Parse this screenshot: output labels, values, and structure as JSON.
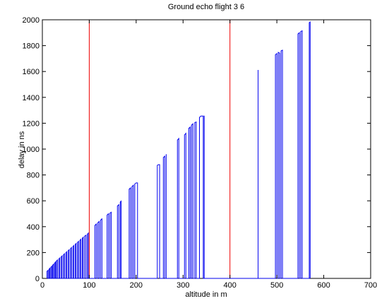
{
  "chart_data": {
    "type": "line",
    "title": "Ground echo flight 3 6",
    "xlabel": "altitude in m",
    "ylabel": "delay in ns",
    "xlim": [
      0,
      700
    ],
    "ylim": [
      0,
      2000
    ],
    "x_ticks": [
      0,
      100,
      200,
      300,
      400,
      500,
      600,
      700
    ],
    "y_ticks": [
      0,
      200,
      400,
      600,
      800,
      1000,
      1200,
      1400,
      1600,
      1800,
      2000
    ],
    "grid": false,
    "legend": "none",
    "colors": {
      "series": "#0000ee",
      "markers": "#ee0000",
      "axes": "#000000"
    },
    "vertical_markers": [
      100,
      400
    ],
    "series": [
      {
        "color": "#0000ee",
        "points": [
          [
            10,
            0
          ],
          [
            10,
            55
          ],
          [
            12,
            62
          ],
          [
            12,
            0
          ],
          [
            14,
            0
          ],
          [
            14,
            70
          ],
          [
            16,
            78
          ],
          [
            16,
            0
          ],
          [
            18,
            0
          ],
          [
            18,
            86
          ],
          [
            20,
            94
          ],
          [
            20,
            0
          ],
          [
            22,
            0
          ],
          [
            22,
            102
          ],
          [
            24,
            110
          ],
          [
            24,
            0
          ],
          [
            26,
            0
          ],
          [
            26,
            118
          ],
          [
            28,
            126
          ],
          [
            28,
            0
          ],
          [
            30,
            0
          ],
          [
            30,
            134
          ],
          [
            32,
            142
          ],
          [
            32,
            0
          ],
          [
            35,
            0
          ],
          [
            35,
            150
          ],
          [
            37,
            158
          ],
          [
            37,
            0
          ],
          [
            40,
            0
          ],
          [
            40,
            166
          ],
          [
            42,
            174
          ],
          [
            42,
            0
          ],
          [
            45,
            0
          ],
          [
            45,
            182
          ],
          [
            47,
            190
          ],
          [
            47,
            0
          ],
          [
            50,
            0
          ],
          [
            50,
            198
          ],
          [
            52,
            206
          ],
          [
            52,
            0
          ],
          [
            55,
            0
          ],
          [
            55,
            214
          ],
          [
            57,
            222
          ],
          [
            57,
            0
          ],
          [
            60,
            0
          ],
          [
            60,
            230
          ],
          [
            62,
            238
          ],
          [
            62,
            0
          ],
          [
            65,
            0
          ],
          [
            65,
            246
          ],
          [
            67,
            254
          ],
          [
            67,
            0
          ],
          [
            70,
            0
          ],
          [
            70,
            262
          ],
          [
            72,
            270
          ],
          [
            72,
            0
          ],
          [
            75,
            0
          ],
          [
            75,
            278
          ],
          [
            77,
            286
          ],
          [
            77,
            0
          ],
          [
            80,
            0
          ],
          [
            80,
            294
          ],
          [
            82,
            302
          ],
          [
            82,
            0
          ],
          [
            85,
            0
          ],
          [
            85,
            310
          ],
          [
            87,
            318
          ],
          [
            87,
            0
          ],
          [
            90,
            0
          ],
          [
            90,
            326
          ],
          [
            93,
            334
          ],
          [
            93,
            0
          ],
          [
            96,
            0
          ],
          [
            96,
            342
          ],
          [
            98,
            350
          ],
          [
            98,
            0
          ],
          [
            112,
            0
          ],
          [
            112,
            410
          ],
          [
            115,
            420
          ],
          [
            115,
            0
          ],
          [
            118,
            0
          ],
          [
            118,
            430
          ],
          [
            121,
            440
          ],
          [
            121,
            0
          ],
          [
            124,
            0
          ],
          [
            124,
            450
          ],
          [
            127,
            460
          ],
          [
            127,
            0
          ],
          [
            138,
            0
          ],
          [
            138,
            490
          ],
          [
            141,
            500
          ],
          [
            141,
            0
          ],
          [
            144,
            0
          ],
          [
            144,
            505
          ],
          [
            147,
            512
          ],
          [
            147,
            0
          ],
          [
            160,
            0
          ],
          [
            160,
            560
          ],
          [
            163,
            570
          ],
          [
            163,
            0
          ],
          [
            166,
            0
          ],
          [
            166,
            590
          ],
          [
            168,
            598
          ],
          [
            168,
            0
          ],
          [
            185,
            0
          ],
          [
            185,
            690
          ],
          [
            188,
            700
          ],
          [
            188,
            0
          ],
          [
            191,
            0
          ],
          [
            191,
            710
          ],
          [
            194,
            720
          ],
          [
            194,
            0
          ],
          [
            197,
            0
          ],
          [
            197,
            730
          ],
          [
            200,
            738
          ],
          [
            203,
            738
          ],
          [
            203,
            0
          ],
          [
            245,
            0
          ],
          [
            245,
            875
          ],
          [
            248,
            880
          ],
          [
            250,
            880
          ],
          [
            250,
            0
          ],
          [
            258,
            0
          ],
          [
            258,
            935
          ],
          [
            261,
            945
          ],
          [
            261,
            0
          ],
          [
            264,
            0
          ],
          [
            264,
            960
          ],
          [
            264,
            0
          ],
          [
            288,
            0
          ],
          [
            288,
            1070
          ],
          [
            291,
            1082
          ],
          [
            291,
            0
          ],
          [
            303,
            0
          ],
          [
            303,
            1110
          ],
          [
            306,
            1122
          ],
          [
            306,
            0
          ],
          [
            312,
            0
          ],
          [
            312,
            1160
          ],
          [
            315,
            1170
          ],
          [
            315,
            0
          ],
          [
            318,
            0
          ],
          [
            318,
            1185
          ],
          [
            321,
            1195
          ],
          [
            321,
            0
          ],
          [
            325,
            0
          ],
          [
            325,
            1205
          ],
          [
            328,
            1210
          ],
          [
            328,
            0
          ],
          [
            335,
            0
          ],
          [
            335,
            1245
          ],
          [
            338,
            1255
          ],
          [
            343,
            1255
          ],
          [
            343,
            0
          ],
          [
            345,
            0
          ],
          [
            345,
            1258
          ],
          [
            345,
            0
          ],
          [
            460,
            0
          ],
          [
            460,
            1612
          ],
          [
            460,
            0
          ],
          [
            497,
            0
          ],
          [
            497,
            1730
          ],
          [
            500,
            1738
          ],
          [
            500,
            0
          ],
          [
            503,
            0
          ],
          [
            503,
            1748
          ],
          [
            506,
            1742
          ],
          [
            506,
            0
          ],
          [
            509,
            0
          ],
          [
            509,
            1760
          ],
          [
            512,
            1765
          ],
          [
            512,
            0
          ],
          [
            545,
            0
          ],
          [
            545,
            1890
          ],
          [
            548,
            1900
          ],
          [
            548,
            0
          ],
          [
            551,
            0
          ],
          [
            551,
            1910
          ],
          [
            554,
            1915
          ],
          [
            554,
            0
          ],
          [
            569,
            0
          ],
          [
            569,
            1978
          ],
          [
            571,
            1983
          ],
          [
            571,
            0
          ]
        ]
      }
    ]
  }
}
